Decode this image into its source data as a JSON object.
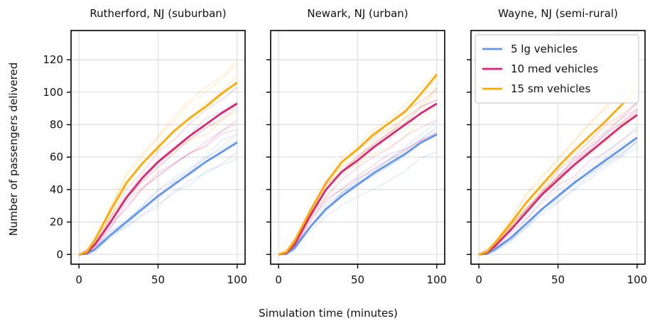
{
  "chart_data": {
    "type": "line",
    "xlabel": "Simulation time (minutes)",
    "ylabel": "Number of passengers delivered",
    "xlim": [
      -5,
      105
    ],
    "ylim": [
      -6,
      138
    ],
    "xticks": [
      0,
      50,
      100
    ],
    "yticks": [
      0,
      20,
      40,
      60,
      80,
      100,
      120
    ],
    "grid": true,
    "legend": {
      "location": "top-right of third panel",
      "entries": [
        "5 lg vehicles",
        "10 med vehicles",
        "15 sm vehicles"
      ]
    },
    "series_colors": {
      "5 lg vehicles": "#6495ED",
      "10 med vehicles": "#D62876",
      "15 sm vehicles": "#FFAA00"
    },
    "panels": [
      {
        "title": "Rutherford, NJ (suburban)",
        "x": [
          0,
          5,
          10,
          20,
          30,
          40,
          50,
          60,
          70,
          80,
          90,
          100
        ],
        "series": [
          {
            "name": "5 lg vehicles",
            "values": [
              0,
              0.5,
              3,
              12,
              20,
              28,
              36,
              43,
              50,
              57,
              63,
              69
            ]
          },
          {
            "name": "10 med vehicles",
            "values": [
              0,
              1,
              6,
              20,
              35,
              47,
              57,
              65,
              73,
              80,
              87,
              93
            ]
          },
          {
            "name": "15 sm vehicles",
            "values": [
              0,
              1.5,
              9,
              27,
              44,
              56,
              66,
              76,
              84,
              91,
              99,
              106
            ]
          }
        ]
      },
      {
        "title": "Newark, NJ (urban)",
        "x": [
          0,
          5,
          10,
          20,
          30,
          40,
          50,
          60,
          70,
          80,
          90,
          100
        ],
        "series": [
          {
            "name": "5 lg vehicles",
            "values": [
              0,
              0.5,
              4,
              17,
              28,
              36,
              43,
              50,
              56,
              62,
              69,
              74
            ]
          },
          {
            "name": "10 med vehicles",
            "values": [
              0,
              1,
              6,
              24,
              40,
              51,
              58,
              66,
              73,
              80,
              87,
              93
            ]
          },
          {
            "name": "15 sm vehicles",
            "values": [
              0,
              1.5,
              8,
              27,
              44,
              57,
              65,
              74,
              81,
              88,
              99,
              111
            ]
          }
        ]
      },
      {
        "title": "Wayne, NJ (semi-rural)",
        "x": [
          0,
          5,
          10,
          20,
          30,
          40,
          50,
          60,
          70,
          80,
          90,
          100
        ],
        "series": [
          {
            "name": "5 lg vehicles",
            "values": [
              0,
              0.5,
              3,
              10,
              19,
              28,
              36,
              44,
              51,
              58,
              65,
              72
            ]
          },
          {
            "name": "10 med vehicles",
            "values": [
              0,
              1,
              5,
              15,
              26,
              37,
              46,
              55,
              63,
              71,
              79,
              86
            ]
          },
          {
            "name": "15 sm vehicles",
            "values": [
              0,
              1.5,
              7,
              19,
              32,
              43,
              54,
              64,
              73,
              82,
              92,
              102
            ]
          }
        ]
      }
    ]
  }
}
